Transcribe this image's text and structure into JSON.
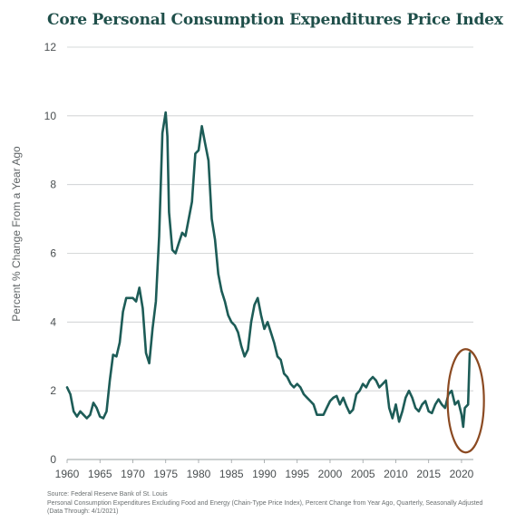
{
  "chart_data": {
    "type": "line",
    "title": "Core Personal Consumption Expenditures Price Index",
    "ylabel": "Percent % Change From a Year Ago",
    "xlabel": "",
    "xlim": [
      1960,
      2021.8
    ],
    "ylim": [
      0,
      12
    ],
    "xticks": [
      1960,
      1965,
      1970,
      1975,
      1980,
      1985,
      1990,
      1995,
      2000,
      2005,
      2010,
      2015,
      2020
    ],
    "yticks": [
      0,
      2,
      4,
      6,
      8,
      10,
      12
    ],
    "grid": "horizontal",
    "line_color": "#1d5c57",
    "highlight_color": "#8b4a22",
    "highlight_note": "circled recent rise to about 3.1 percent",
    "series": [
      {
        "x": [
          1960.0,
          1960.5,
          1961.0,
          1961.5,
          1962.0,
          1962.5,
          1963.0,
          1963.5,
          1964.0,
          1964.5,
          1965.0,
          1965.5,
          1966.0,
          1966.5,
          1967.0,
          1967.5,
          1968.0,
          1968.5,
          1969.0,
          1969.5,
          1970.0,
          1970.5,
          1971.0,
          1971.5,
          1972.0,
          1972.5,
          1973.0,
          1973.5,
          1974.0,
          1974.5,
          1975.0,
          1975.25,
          1975.5,
          1976.0,
          1976.5,
          1977.0,
          1977.5,
          1978.0,
          1978.5,
          1979.0,
          1979.5,
          1980.0,
          1980.5,
          1981.0,
          1981.5,
          1982.0,
          1982.5,
          1983.0,
          1983.5,
          1984.0,
          1984.5,
          1985.0,
          1985.5,
          1986.0,
          1986.5,
          1987.0,
          1987.5,
          1988.0,
          1988.5,
          1989.0,
          1989.5,
          1990.0,
          1990.5,
          1991.0,
          1991.5,
          1992.0,
          1992.5,
          1993.0,
          1993.5,
          1994.0,
          1994.5,
          1995.0,
          1995.5,
          1996.0,
          1996.5,
          1997.0,
          1997.5,
          1998.0,
          1998.5,
          1999.0,
          1999.5,
          2000.0,
          2000.5,
          2001.0,
          2001.5,
          2002.0,
          2002.5,
          2003.0,
          2003.5,
          2004.0,
          2004.5,
          2005.0,
          2005.5,
          2006.0,
          2006.5,
          2007.0,
          2007.5,
          2008.0,
          2008.5,
          2009.0,
          2009.5,
          2010.0,
          2010.5,
          2011.0,
          2011.5,
          2012.0,
          2012.5,
          2013.0,
          2013.5,
          2014.0,
          2014.5,
          2015.0,
          2015.5,
          2016.0,
          2016.5,
          2017.0,
          2017.5,
          2018.0,
          2018.5,
          2019.0,
          2019.5,
          2020.0,
          2020.25,
          2020.5,
          2021.0,
          2021.25
        ],
        "y": [
          2.1,
          1.9,
          1.4,
          1.25,
          1.4,
          1.3,
          1.2,
          1.3,
          1.65,
          1.5,
          1.25,
          1.2,
          1.4,
          2.3,
          3.05,
          3.0,
          3.4,
          4.3,
          4.7,
          4.7,
          4.7,
          4.6,
          5.0,
          4.4,
          3.1,
          2.8,
          3.8,
          4.6,
          6.5,
          9.5,
          10.1,
          9.4,
          7.2,
          6.1,
          6.0,
          6.3,
          6.6,
          6.5,
          7.0,
          7.5,
          8.9,
          9.0,
          9.7,
          9.2,
          8.7,
          7.0,
          6.4,
          5.4,
          4.9,
          4.6,
          4.2,
          4.0,
          3.9,
          3.7,
          3.3,
          3.0,
          3.2,
          4.0,
          4.5,
          4.7,
          4.2,
          3.8,
          4.0,
          3.7,
          3.4,
          3.0,
          2.9,
          2.5,
          2.4,
          2.2,
          2.1,
          2.2,
          2.1,
          1.9,
          1.8,
          1.7,
          1.6,
          1.3,
          1.3,
          1.3,
          1.5,
          1.7,
          1.8,
          1.85,
          1.6,
          1.8,
          1.55,
          1.35,
          1.45,
          1.9,
          2.0,
          2.2,
          2.1,
          2.3,
          2.4,
          2.3,
          2.1,
          2.2,
          2.3,
          1.5,
          1.2,
          1.6,
          1.1,
          1.4,
          1.8,
          2.0,
          1.8,
          1.5,
          1.4,
          1.6,
          1.7,
          1.4,
          1.35,
          1.6,
          1.75,
          1.6,
          1.5,
          1.9,
          2.0,
          1.6,
          1.7,
          1.3,
          0.95,
          1.5,
          1.6,
          3.1
        ]
      }
    ]
  },
  "footer": {
    "source": "Source: Federal Reserve Bank of St. Louis",
    "note": "Personal Consumption Expenditures Excluding Food and Energy (Chain-Type Price Index), Percent Change from Year Ago, Quarterly, Seasonally Adjusted (Data Through: 4/1/2021)"
  }
}
